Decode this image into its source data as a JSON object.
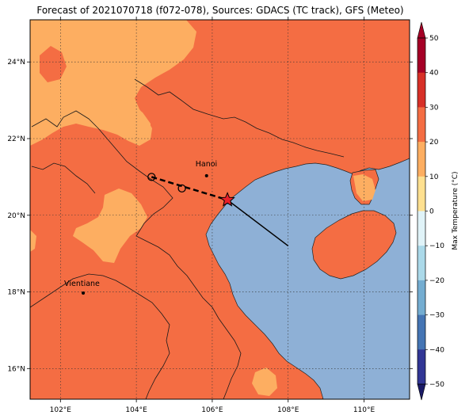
{
  "title": "Forecast of 2021070718 (f072-078), Sources: GDACS (TC track), GFS (Meteo)",
  "map": {
    "lon_range": [
      101.2,
      111.2
    ],
    "lat_range": [
      15.2,
      25.1
    ],
    "x_ticks": [
      "102°E",
      "104°E",
      "106°E",
      "108°E",
      "110°E"
    ],
    "x_tick_values": [
      102,
      104,
      106,
      108,
      110
    ],
    "y_ticks": [
      "16°N",
      "18°N",
      "20°N",
      "22°N",
      "24°N"
    ],
    "y_tick_values": [
      16,
      18,
      20,
      22,
      24
    ],
    "gridlines": "dotted",
    "colors": {
      "land_warm": "#f46d43",
      "land_cool": "#fdae61",
      "sea": "#8eb0d6",
      "track": "#000000",
      "star": "#e8202a"
    }
  },
  "cities": [
    {
      "name": "Hanoi",
      "lon": 105.85,
      "lat": 21.03
    },
    {
      "name": "Vientiane",
      "lon": 102.6,
      "lat": 17.97
    }
  ],
  "track": {
    "past_positions": [
      {
        "lon": 104.4,
        "lat": 21.0
      },
      {
        "lon": 105.2,
        "lat": 20.7
      }
    ],
    "current_position": {
      "lon": 106.4,
      "lat": 20.4
    },
    "forecast_end": {
      "lon": 108.0,
      "lat": 19.2
    }
  },
  "colorbar": {
    "label": "Max Temperature (°C)",
    "ticks": [
      "50",
      "40",
      "30",
      "20",
      "10",
      "0",
      "−10",
      "−20",
      "−30",
      "−40",
      "−50"
    ],
    "colors": [
      "#a50026",
      "#d73027",
      "#f46d43",
      "#fdae61",
      "#fee090",
      "#ffffbf",
      "#e0f3f8",
      "#abd9e9",
      "#74add1",
      "#4575b4",
      "#313695"
    ],
    "min": -50,
    "max": 50
  }
}
